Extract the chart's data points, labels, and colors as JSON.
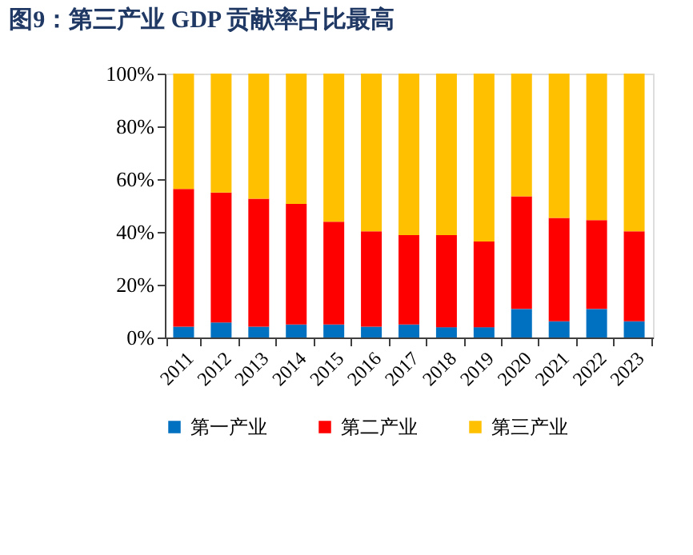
{
  "chart_data": {
    "type": "bar",
    "title": "图9：第三产业 GDP 贡献率占比最高",
    "stacked": true,
    "categories": [
      "2011",
      "2012",
      "2013",
      "2014",
      "2015",
      "2016",
      "2017",
      "2018",
      "2019",
      "2020",
      "2021",
      "2022",
      "2023"
    ],
    "series": [
      {
        "name": "第一产业",
        "color": "#0070c0",
        "values": [
          4.1,
          5.7,
          4.1,
          4.9,
          4.9,
          4.1,
          4.9,
          3.9,
          3.9,
          10.8,
          6.1,
          10.8,
          6.1
        ]
      },
      {
        "name": "第二产业",
        "color": "#ff0000",
        "values": [
          52.2,
          49.2,
          48.5,
          45.7,
          39.0,
          36.1,
          33.9,
          34.9,
          32.5,
          42.7,
          39.2,
          33.7,
          34.1
        ]
      },
      {
        "name": "第三产业",
        "color": "#ffc000",
        "values": [
          43.7,
          45.1,
          47.4,
          49.4,
          56.1,
          59.8,
          61.2,
          61.2,
          63.6,
          46.5,
          54.7,
          55.5,
          59.8
        ]
      }
    ],
    "ylim": [
      0,
      100
    ],
    "yticks": [
      {
        "value": 0,
        "label": "0%"
      },
      {
        "value": 20,
        "label": "20%"
      },
      {
        "value": 40,
        "label": "40%"
      },
      {
        "value": 60,
        "label": "60%"
      },
      {
        "value": 80,
        "label": "80%"
      },
      {
        "value": 100,
        "label": "100%"
      }
    ],
    "grid": false,
    "legend": "bottom"
  }
}
